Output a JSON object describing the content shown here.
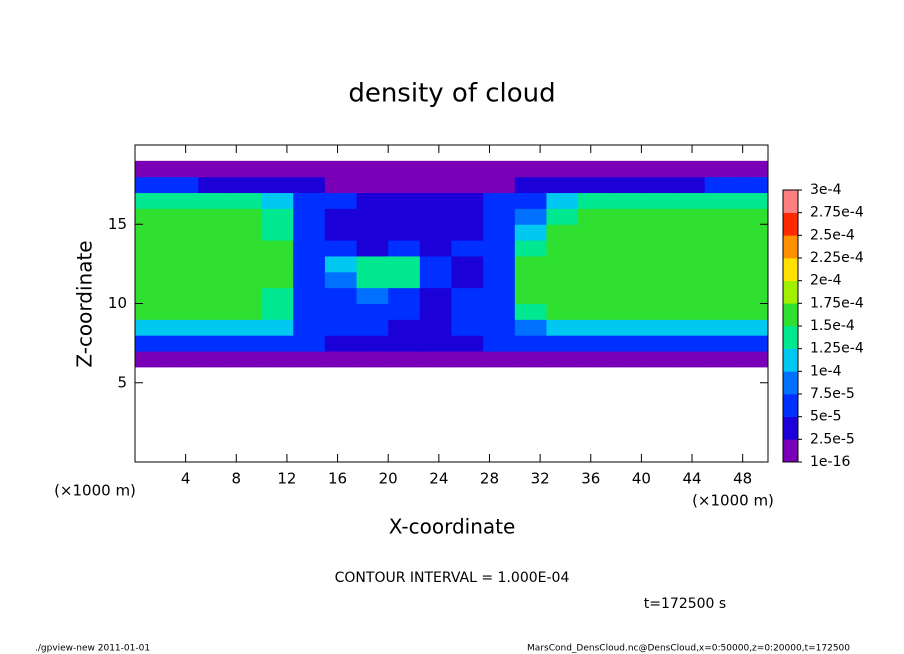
{
  "chart_data": {
    "type": "heatmap",
    "title": "density of cloud",
    "xlabel": "X-coordinate",
    "ylabel": "Z-coordinate",
    "xunit": "(×1000 m)",
    "yunit": "(×1000 m)",
    "note": "CONTOUR INTERVAL = 1.000E-04",
    "time": "t=172500 s",
    "footer_left": "./gpview-new  2011-01-01",
    "footer_right": "MarsCond_DensCloud.nc@DensCloud,x=0:50000,z=0:20000,t=172500",
    "xlim": [
      0,
      50
    ],
    "ylim": [
      0,
      20
    ],
    "xticks": [
      4,
      8,
      12,
      16,
      20,
      24,
      28,
      32,
      36,
      40,
      44,
      48
    ],
    "yticks": [
      5,
      10,
      15
    ],
    "x": [
      1.25,
      3.75,
      6.25,
      8.75,
      11.25,
      13.75,
      16.25,
      18.75,
      21.25,
      23.75,
      26.25,
      28.75,
      31.25,
      33.75,
      36.25,
      38.75,
      41.25,
      43.75,
      46.25,
      48.75
    ],
    "z": [
      6.5,
      7.5,
      8.5,
      9.5,
      10.5,
      11.5,
      12.5,
      13.5,
      14.5,
      15.5,
      16.5,
      17.5,
      18.5
    ],
    "values": [
      [
        1.5e-05,
        1.5e-05,
        1.5e-05,
        1.5e-05,
        1.5e-05,
        1.5e-05,
        1.5e-05,
        1.5e-05,
        1.5e-05,
        1.5e-05,
        1.5e-05,
        1.5e-05,
        1.5e-05,
        1.5e-05,
        1.5e-05,
        1.5e-05,
        1.5e-05,
        1.5e-05,
        1.5e-05,
        1.5e-05
      ],
      [
        6e-05,
        6e-05,
        6e-05,
        6e-05,
        6e-05,
        5e-05,
        4e-05,
        4e-05,
        4e-05,
        3e-05,
        4e-05,
        5e-05,
        6e-05,
        6e-05,
        6e-05,
        6e-05,
        6e-05,
        6e-05,
        6e-05,
        6e-05
      ],
      [
        0.00011,
        0.00011,
        0.00011,
        0.00011,
        0.00011,
        6e-05,
        5e-05,
        5e-05,
        4e-05,
        4e-05,
        5e-05,
        6e-05,
        9e-05,
        0.00011,
        0.00011,
        0.00011,
        0.00011,
        0.00011,
        0.00011,
        0.00011
      ],
      [
        0.00016,
        0.00016,
        0.00016,
        0.00016,
        0.00013,
        6e-05,
        5e-05,
        6e-05,
        5e-05,
        4e-05,
        5e-05,
        6e-05,
        0.00013,
        0.00016,
        0.00016,
        0.00016,
        0.00016,
        0.00016,
        0.00016,
        0.00016
      ],
      [
        0.00016,
        0.00016,
        0.00016,
        0.00016,
        0.00013,
        6e-05,
        5e-05,
        8e-05,
        5e-05,
        4e-05,
        5e-05,
        6e-05,
        0.00015,
        0.00016,
        0.00016,
        0.00016,
        0.00016,
        0.00016,
        0.00016,
        0.00016
      ],
      [
        0.00016,
        0.00016,
        0.00016,
        0.00016,
        0.00016,
        6e-05,
        8e-05,
        0.00014,
        0.00014,
        5e-05,
        4e-05,
        6e-05,
        0.00015,
        0.00016,
        0.00016,
        0.00016,
        0.00016,
        0.00016,
        0.00016,
        0.00016
      ],
      [
        0.00016,
        0.00016,
        0.00016,
        0.00016,
        0.00016,
        5e-05,
        0.00012,
        0.00014,
        0.00013,
        5e-05,
        4e-05,
        7e-05,
        0.00015,
        0.00016,
        0.00016,
        0.00016,
        0.00016,
        0.00016,
        0.00016,
        0.00016
      ],
      [
        0.00016,
        0.00016,
        0.00016,
        0.00016,
        0.00015,
        6e-05,
        5e-05,
        4e-05,
        5e-05,
        4e-05,
        5e-05,
        7e-05,
        0.00014,
        0.00016,
        0.00016,
        0.00016,
        0.00016,
        0.00016,
        0.00016,
        0.00016
      ],
      [
        0.00016,
        0.00016,
        0.00016,
        0.00016,
        0.00014,
        5e-05,
        4e-05,
        4e-05,
        4e-05,
        3e-05,
        4e-05,
        6e-05,
        0.00012,
        0.00015,
        0.00016,
        0.00016,
        0.00016,
        0.00016,
        0.00016,
        0.00016
      ],
      [
        0.00016,
        0.00016,
        0.00016,
        0.00016,
        0.00013,
        6e-05,
        4e-05,
        4e-05,
        3e-05,
        3e-05,
        4e-05,
        5e-05,
        9e-05,
        0.00014,
        0.00015,
        0.00016,
        0.00016,
        0.00016,
        0.00016,
        0.00016
      ],
      [
        0.00013,
        0.00014,
        0.00014,
        0.00013,
        0.00011,
        6e-05,
        5e-05,
        4e-05,
        4e-05,
        4e-05,
        4e-05,
        5e-05,
        6e-05,
        0.00011,
        0.00013,
        0.00014,
        0.00014,
        0.00014,
        0.00014,
        0.00013
      ],
      [
        5e-05,
        5e-05,
        4e-05,
        4e-05,
        4e-05,
        3e-05,
        2e-05,
        2e-05,
        2e-05,
        2e-05,
        2e-05,
        2e-05,
        3e-05,
        3e-05,
        4e-05,
        4e-05,
        4e-05,
        4e-05,
        5e-05,
        5e-05
      ],
      [
        1e-05,
        1e-05,
        1e-05,
        1e-05,
        1e-05,
        1e-05,
        1e-05,
        1e-05,
        1e-05,
        1e-05,
        1e-05,
        1e-05,
        1e-05,
        1e-05,
        1e-05,
        1e-05,
        1e-05,
        1e-05,
        1e-05,
        1e-05
      ]
    ],
    "levels": [
      {
        "value": 1e-16,
        "label": "1e-16"
      },
      {
        "value": 2.5e-05,
        "label": "2.5e-5"
      },
      {
        "value": 5e-05,
        "label": "5e-5"
      },
      {
        "value": 7.5e-05,
        "label": "7.5e-5"
      },
      {
        "value": 0.0001,
        "label": "1e-4"
      },
      {
        "value": 0.000125,
        "label": "1.25e-4"
      },
      {
        "value": 0.00015,
        "label": "1.5e-4"
      },
      {
        "value": 0.000175,
        "label": "1.75e-4"
      },
      {
        "value": 0.0002,
        "label": "2e-4"
      },
      {
        "value": 0.000225,
        "label": "2.25e-4"
      },
      {
        "value": 0.00025,
        "label": "2.5e-4"
      },
      {
        "value": 0.000275,
        "label": "2.75e-4"
      },
      {
        "value": 0.0003,
        "label": "3e-4"
      }
    ],
    "colors": [
      "#7a00b8",
      "#1c00d8",
      "#0030ff",
      "#0070ff",
      "#00c8f0",
      "#00e890",
      "#30e030",
      "#a0f000",
      "#ffe000",
      "#ff9000",
      "#ff2a00",
      "#ff8080"
    ]
  }
}
